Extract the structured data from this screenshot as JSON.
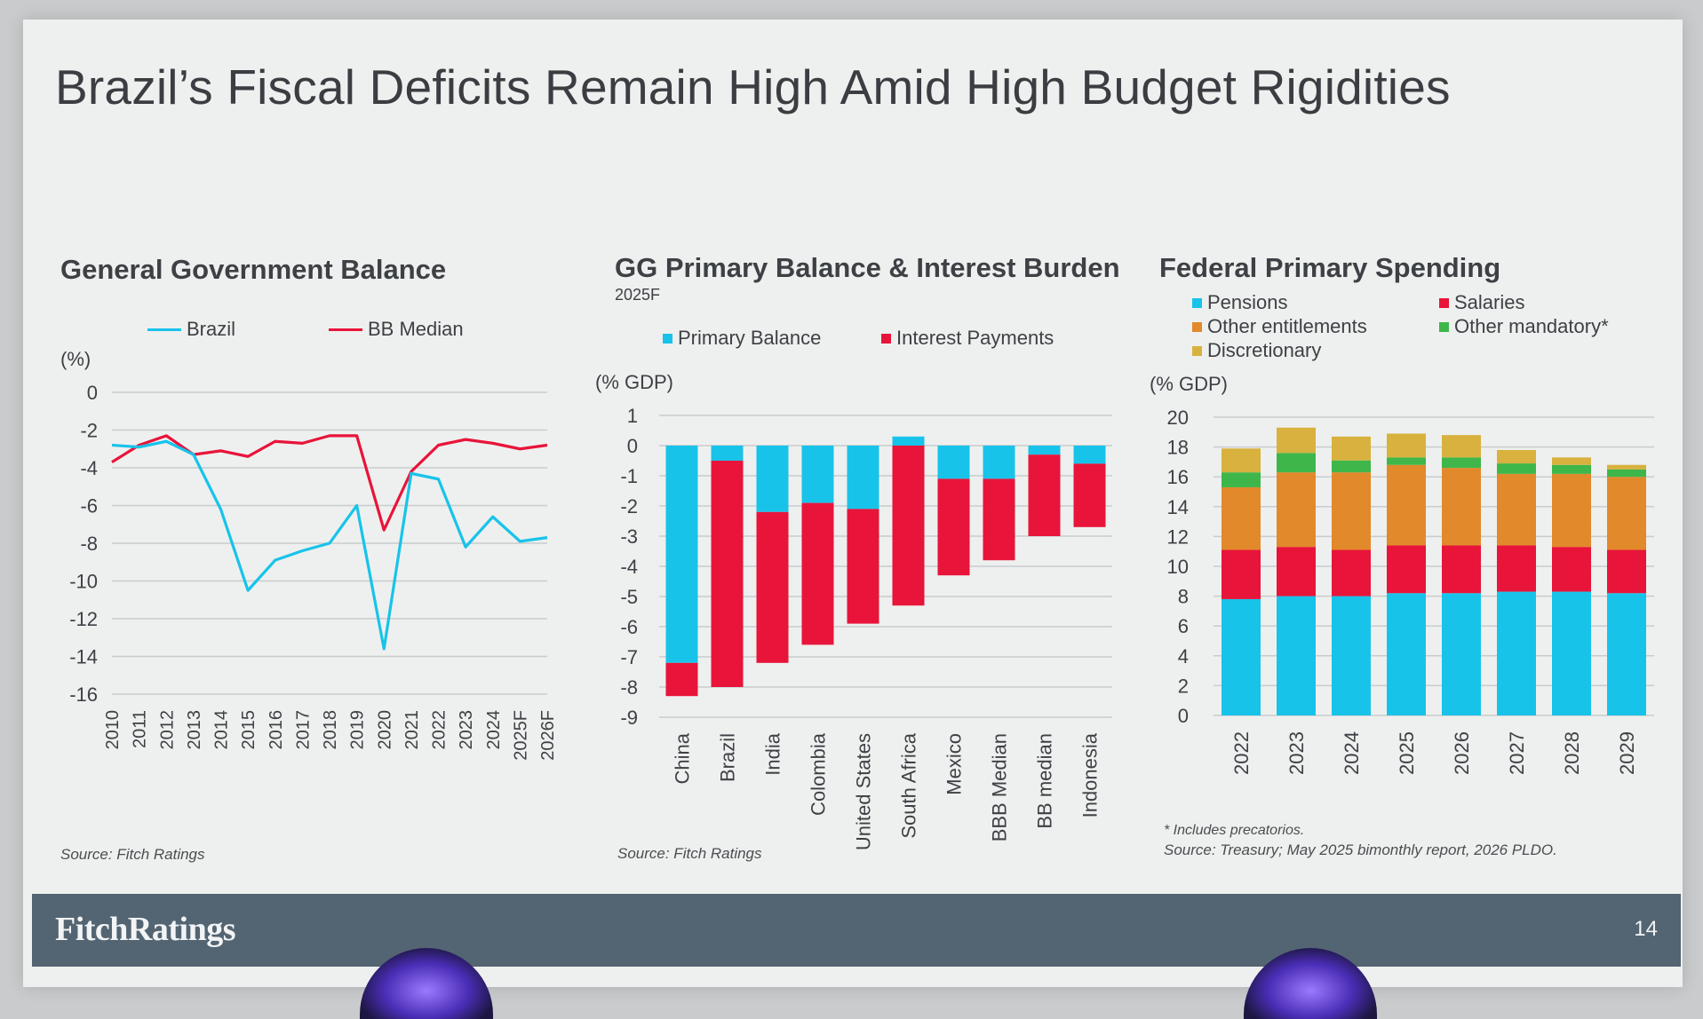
{
  "slide": {
    "title": "Brazil’s Fiscal Deficits Remain High Amid High Budget Rigidities",
    "page_number": "14",
    "brand": "FitchRatings"
  },
  "colors": {
    "cyan": "#18c3ea",
    "red": "#e8143a",
    "orange": "#e2892b",
    "green": "#3eb64a",
    "gold": "#d8b13e",
    "grid": "#c9ccce",
    "text": "#3d4145",
    "footer": "#536472"
  },
  "chart_data": [
    {
      "id": "gg_balance",
      "type": "line",
      "title": "General Government Balance",
      "ylabel": "(%)",
      "ylim": [
        -16,
        0
      ],
      "yticks": [
        0,
        -2,
        -4,
        -6,
        -8,
        -10,
        -12,
        -14,
        -16
      ],
      "categories": [
        "2010",
        "2011",
        "2012",
        "2013",
        "2014",
        "2015",
        "2016",
        "2017",
        "2018",
        "2019",
        "2020",
        "2021",
        "2022",
        "2023",
        "2024",
        "2025F",
        "2026F"
      ],
      "series": [
        {
          "name": "Brazil",
          "color": "#18c3ea",
          "values": [
            -2.8,
            -2.9,
            -2.6,
            -3.3,
            -6.2,
            -10.5,
            -8.9,
            -8.4,
            -8.0,
            -6.0,
            -13.6,
            -4.3,
            -4.6,
            -8.2,
            -6.6,
            -7.9,
            -7.7
          ]
        },
        {
          "name": "BB Median",
          "color": "#e8143a",
          "values": [
            -3.7,
            -2.8,
            -2.3,
            -3.3,
            -3.1,
            -3.4,
            -2.6,
            -2.7,
            -2.3,
            -2.3,
            -7.3,
            -4.2,
            -2.8,
            -2.5,
            -2.7,
            -3.0,
            -2.8
          ]
        }
      ],
      "source": "Source: Fitch Ratings"
    },
    {
      "id": "gg_primary",
      "type": "bar",
      "stacked": true,
      "title": "GG Primary Balance & Interest Burden",
      "subtitle": "2025F",
      "ylabel": "(% GDP)",
      "ylim": [
        -9,
        1
      ],
      "yticks": [
        1,
        0,
        -1,
        -2,
        -3,
        -4,
        -5,
        -6,
        -7,
        -8,
        -9
      ],
      "categories": [
        "China",
        "Brazil",
        "India",
        "Colombia",
        "United States",
        "South Africa",
        "Mexico",
        "BBB Median",
        "BB median",
        "Indonesia"
      ],
      "series": [
        {
          "name": "Primary Balance",
          "color": "#18c3ea",
          "values": [
            -7.2,
            -0.5,
            -2.2,
            -1.9,
            -2.1,
            0.3,
            -1.1,
            -1.1,
            -0.3,
            -0.6
          ]
        },
        {
          "name": "Interest Payments",
          "color": "#e8143a",
          "values": [
            -1.1,
            -7.5,
            -5.0,
            -4.7,
            -3.8,
            -5.3,
            -3.2,
            -2.7,
            -2.7,
            -2.1
          ]
        }
      ],
      "source": "Source: Fitch Ratings"
    },
    {
      "id": "federal_spending",
      "type": "bar",
      "stacked": true,
      "title": "Federal Primary Spending",
      "ylabel": "(% GDP)",
      "ylim": [
        0,
        20
      ],
      "yticks": [
        20,
        18,
        16,
        14,
        12,
        10,
        8,
        6,
        4,
        2,
        0
      ],
      "categories": [
        "2022",
        "2023",
        "2024",
        "2025",
        "2026",
        "2027",
        "2028",
        "2029"
      ],
      "series": [
        {
          "name": "Pensions",
          "color": "#18c3ea",
          "values": [
            7.8,
            8.0,
            8.0,
            8.2,
            8.2,
            8.3,
            8.3,
            8.2
          ]
        },
        {
          "name": "Salaries",
          "color": "#e8143a",
          "values": [
            3.3,
            3.3,
            3.1,
            3.2,
            3.2,
            3.1,
            3.0,
            2.9
          ]
        },
        {
          "name": "Other entitlements",
          "color": "#e2892b",
          "values": [
            4.2,
            5.0,
            5.2,
            5.4,
            5.2,
            4.8,
            4.9,
            4.9
          ]
        },
        {
          "name": "Other mandatory*",
          "color": "#3eb64a",
          "values": [
            1.0,
            1.3,
            0.8,
            0.5,
            0.7,
            0.7,
            0.6,
            0.5
          ]
        },
        {
          "name": "Discretionary",
          "color": "#d8b13e",
          "values": [
            1.6,
            1.7,
            1.6,
            1.6,
            1.5,
            0.9,
            0.5,
            0.3
          ]
        }
      ],
      "note": "* Includes precatorios.",
      "source": "Source: Treasury; May 2025 bimonthly report, 2026 PLDO."
    }
  ]
}
